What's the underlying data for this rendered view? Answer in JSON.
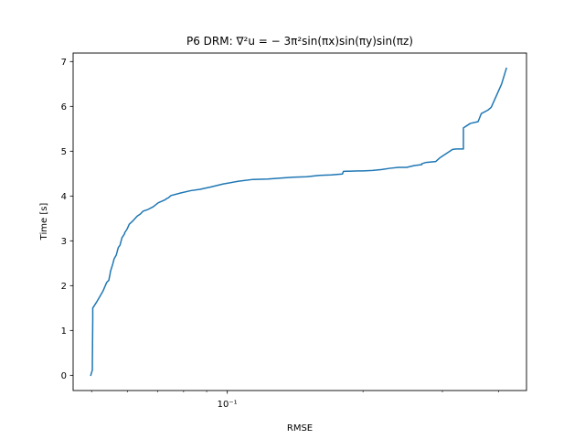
{
  "chart_data": {
    "type": "line",
    "title": "P6 DRM: ∇²u = − 3π²sin(πx)sin(πy)sin(πz)",
    "xlabel": "RMSE",
    "ylabel": "Time [s]",
    "xscale": "log",
    "xlim": [
      0.0455,
      0.461
    ],
    "ylim": [
      -0.34,
      7.19
    ],
    "x_ticks": [
      {
        "value": 0.1,
        "label": "10⁻¹"
      }
    ],
    "y_ticks": [
      0,
      1,
      2,
      3,
      4,
      5,
      6,
      7
    ],
    "grid": false,
    "series": [
      {
        "color": "#1f77b4",
        "x": [
          0.0498,
          0.0502,
          0.0502,
          0.0503,
          0.0503,
          0.0512,
          0.0521,
          0.053,
          0.054,
          0.0546,
          0.055,
          0.055,
          0.0557,
          0.0561,
          0.0567,
          0.0573,
          0.0578,
          0.0584,
          0.0592,
          0.0592,
          0.06,
          0.0606,
          0.0618,
          0.0631,
          0.0642,
          0.065,
          0.0667,
          0.0685,
          0.0703,
          0.0726,
          0.0736,
          0.074,
          0.075,
          0.079,
          0.083,
          0.087,
          0.0918,
          0.098,
          0.106,
          0.114,
          0.123,
          0.131,
          0.14,
          0.15,
          0.16,
          0.17,
          0.18,
          0.181,
          0.195,
          0.2,
          0.21,
          0.22,
          0.23,
          0.24,
          0.25,
          0.26,
          0.27,
          0.27,
          0.276,
          0.283,
          0.29,
          0.296,
          0.316,
          0.316,
          0.322,
          0.33,
          0.334,
          0.334,
          0.346,
          0.36,
          0.366,
          0.379,
          0.385,
          0.406,
          0.416
        ],
        "y": [
          0.0,
          0.12,
          0.28,
          1.26,
          1.5,
          1.62,
          1.75,
          1.88,
          2.07,
          2.12,
          2.28,
          2.3,
          2.48,
          2.6,
          2.68,
          2.85,
          2.9,
          3.07,
          3.16,
          3.18,
          3.27,
          3.37,
          3.45,
          3.55,
          3.6,
          3.66,
          3.7,
          3.76,
          3.85,
          3.91,
          3.95,
          3.96,
          4.01,
          4.07,
          4.12,
          4.15,
          4.2,
          4.27,
          4.33,
          4.37,
          4.38,
          4.4,
          4.42,
          4.43,
          4.46,
          4.47,
          4.49,
          4.55,
          4.56,
          4.56,
          4.57,
          4.59,
          4.62,
          4.64,
          4.64,
          4.68,
          4.7,
          4.72,
          4.75,
          4.76,
          4.77,
          4.85,
          5.04,
          5.04,
          5.05,
          5.05,
          5.05,
          5.52,
          5.62,
          5.66,
          5.84,
          5.92,
          5.98,
          6.5,
          6.85
        ]
      }
    ]
  }
}
